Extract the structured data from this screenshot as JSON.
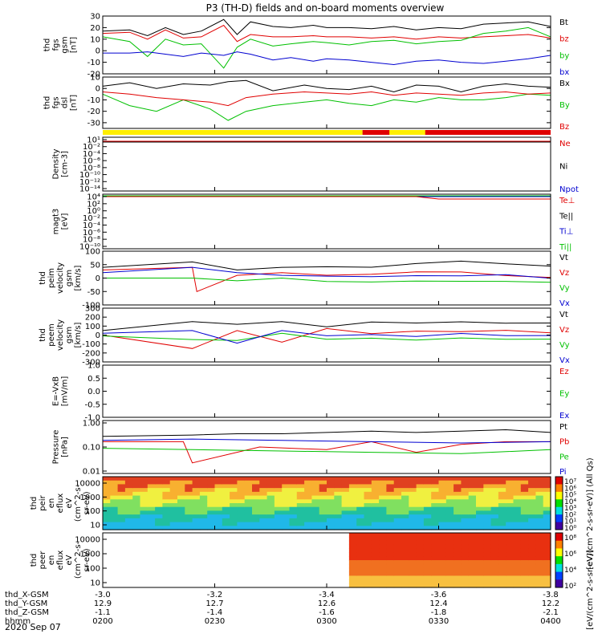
{
  "title": "P3 (TH-D) fields and on-board moments overview",
  "date_label": "2020 Sep 07",
  "colors": {
    "black": "#000000",
    "red": "#e00000",
    "green": "#00c000",
    "blue": "#0000d0",
    "yellow": "#ffee00"
  },
  "chart_data": [
    {
      "type": "line",
      "name": "fgs_gsm",
      "ylabel": [
        "thd",
        "fgs",
        "gsm",
        "[nT]"
      ],
      "ylim": [
        -20,
        30
      ],
      "yticks": [
        -20,
        -10,
        0,
        10,
        20,
        30
      ],
      "legend": [
        {
          "label": "Bt",
          "color": "black"
        },
        {
          "label": "bz",
          "color": "red"
        },
        {
          "label": "by",
          "color": "green"
        },
        {
          "label": "bx",
          "color": "blue"
        }
      ],
      "series": [
        {
          "name": "Bt",
          "color": "black",
          "x": [
            0,
            0.06,
            0.1,
            0.14,
            0.18,
            0.22,
            0.27,
            0.3,
            0.33,
            0.38,
            0.42,
            0.47,
            0.5,
            0.55,
            0.6,
            0.65,
            0.7,
            0.75,
            0.8,
            0.85,
            0.9,
            0.95,
            1
          ],
          "y": [
            17,
            18,
            13,
            20,
            14,
            17,
            27,
            14,
            25,
            21,
            20,
            22,
            20,
            20,
            19,
            21,
            18,
            20,
            19,
            23,
            24,
            25,
            21
          ]
        },
        {
          "name": "bz",
          "color": "red",
          "x": [
            0,
            0.06,
            0.1,
            0.14,
            0.18,
            0.22,
            0.27,
            0.3,
            0.33,
            0.38,
            0.42,
            0.47,
            0.5,
            0.55,
            0.6,
            0.65,
            0.7,
            0.75,
            0.8,
            0.85,
            0.9,
            0.95,
            1
          ],
          "y": [
            15,
            16,
            10,
            18,
            11,
            12,
            22,
            8,
            14,
            12,
            12,
            13,
            12,
            12,
            11,
            12,
            10,
            12,
            11,
            12,
            13,
            14,
            11
          ]
        },
        {
          "name": "by",
          "color": "green",
          "x": [
            0,
            0.06,
            0.1,
            0.14,
            0.18,
            0.22,
            0.27,
            0.3,
            0.33,
            0.38,
            0.42,
            0.47,
            0.5,
            0.55,
            0.6,
            0.65,
            0.7,
            0.75,
            0.8,
            0.85,
            0.9,
            0.95,
            1
          ],
          "y": [
            12,
            8,
            -5,
            10,
            5,
            6,
            -15,
            3,
            10,
            4,
            6,
            8,
            7,
            5,
            8,
            9,
            6,
            8,
            9,
            15,
            17,
            20,
            12
          ]
        },
        {
          "name": "bx",
          "color": "blue",
          "x": [
            0,
            0.06,
            0.1,
            0.14,
            0.18,
            0.22,
            0.27,
            0.3,
            0.33,
            0.38,
            0.42,
            0.47,
            0.5,
            0.55,
            0.6,
            0.65,
            0.7,
            0.75,
            0.8,
            0.85,
            0.9,
            0.95,
            1
          ],
          "y": [
            -2,
            -2,
            -1,
            -3,
            -5,
            -2,
            -4,
            -1,
            -3,
            -8,
            -6,
            -9,
            -7,
            -8,
            -10,
            -12,
            -9,
            -8,
            -10,
            -11,
            -9,
            -7,
            -4
          ]
        }
      ]
    },
    {
      "type": "line",
      "name": "fgs_dsl",
      "ylabel": [
        "thd",
        "fgs",
        "dsl",
        "[nT]"
      ],
      "ylim": [
        -35,
        10
      ],
      "yticks": [
        -30,
        -20,
        -10,
        0,
        10
      ],
      "legend": [
        {
          "label": "Bx",
          "color": "black"
        },
        {
          "label": "By",
          "color": "green"
        },
        {
          "label": "Bz",
          "color": "red"
        }
      ],
      "series": [
        {
          "name": "Bx",
          "color": "black",
          "x": [
            0,
            0.06,
            0.12,
            0.18,
            0.24,
            0.28,
            0.32,
            0.38,
            0.45,
            0.5,
            0.55,
            0.6,
            0.65,
            0.7,
            0.75,
            0.8,
            0.85,
            0.9,
            0.95,
            1
          ],
          "y": [
            2,
            5,
            0,
            4,
            3,
            6,
            7,
            -2,
            3,
            0,
            -1,
            2,
            -3,
            3,
            2,
            -3,
            2,
            4,
            2,
            1
          ]
        },
        {
          "name": "By",
          "color": "green",
          "x": [
            0,
            0.06,
            0.12,
            0.18,
            0.24,
            0.28,
            0.32,
            0.38,
            0.45,
            0.5,
            0.55,
            0.6,
            0.65,
            0.7,
            0.75,
            0.8,
            0.85,
            0.9,
            0.95,
            1
          ],
          "y": [
            -5,
            -15,
            -20,
            -10,
            -18,
            -28,
            -20,
            -15,
            -12,
            -10,
            -13,
            -15,
            -10,
            -12,
            -8,
            -10,
            -10,
            -8,
            -5,
            -6
          ]
        },
        {
          "name": "Bz",
          "color": "red",
          "x": [
            0,
            0.06,
            0.12,
            0.18,
            0.24,
            0.28,
            0.32,
            0.38,
            0.45,
            0.5,
            0.55,
            0.6,
            0.65,
            0.7,
            0.75,
            0.8,
            0.85,
            0.9,
            0.95,
            1
          ],
          "y": [
            -3,
            -5,
            -8,
            -10,
            -12,
            -15,
            -8,
            -5,
            -3,
            -4,
            -5,
            -3,
            -6,
            -4,
            -5,
            -6,
            -4,
            -3,
            -5,
            -4
          ]
        }
      ]
    },
    {
      "type": "line",
      "name": "density",
      "ylabel": [
        "Density",
        "[cm-3]"
      ],
      "ylog": true,
      "ylim": [
        -14,
        2
      ],
      "ytick_labels": [
        "10¹",
        "10⁻²",
        "10⁻⁴",
        "10⁻⁶",
        "10⁻⁸",
        "10⁻¹⁰",
        "10⁻¹²",
        "10⁻¹⁴"
      ],
      "legend": [
        {
          "label": "Ne",
          "color": "red"
        },
        {
          "label": "Ni",
          "color": "black"
        },
        {
          "label": "Npot",
          "color": "blue"
        }
      ],
      "series": [
        {
          "name": "Ne",
          "color": "red",
          "x": [
            0,
            1
          ],
          "y": [
            0.7,
            0.7
          ]
        },
        {
          "name": "Ni",
          "color": "black",
          "x": [
            0,
            1
          ],
          "y": [
            0.6,
            0.6
          ]
        }
      ]
    },
    {
      "type": "line",
      "name": "temperature",
      "ylabel": [
        "magt3",
        "[eV]"
      ],
      "ylog": true,
      "ylim": [
        -10,
        4
      ],
      "ytick_labels": [
        "10⁴",
        "10²",
        "10⁰",
        "10⁻²",
        "10⁻⁴",
        "10⁻⁶",
        "10⁻⁸",
        "10⁻¹⁰"
      ],
      "legend": [
        {
          "label": "Te⊥",
          "color": "red"
        },
        {
          "label": "Te||",
          "color": "black"
        },
        {
          "label": "Ti⊥",
          "color": "blue"
        },
        {
          "label": "Ti||",
          "color": "green"
        }
      ],
      "series": [
        {
          "name": "Te",
          "color": "red",
          "x": [
            0,
            0.7,
            0.75,
            1
          ],
          "y": [
            3.2,
            3.2,
            2.8,
            2.8
          ]
        },
        {
          "name": "Ti",
          "color": "green",
          "x": [
            0,
            1
          ],
          "y": [
            3.4,
            3.4
          ]
        }
      ]
    },
    {
      "type": "line",
      "name": "peim_velocity",
      "ylabel": [
        "thd",
        "peim",
        "velocity",
        "gsm",
        "[km/s]"
      ],
      "ylim": [
        -100,
        100
      ],
      "yticks": [
        -100,
        -50,
        0,
        50,
        100
      ],
      "legend": [
        {
          "label": "Vt",
          "color": "black"
        },
        {
          "label": "Vz",
          "color": "red"
        },
        {
          "label": "Vy",
          "color": "green"
        },
        {
          "label": "Vx",
          "color": "blue"
        }
      ],
      "series": [
        {
          "name": "Vt",
          "color": "black",
          "x": [
            0,
            0.2,
            0.3,
            0.4,
            0.5,
            0.6,
            0.7,
            0.8,
            0.9,
            1
          ],
          "y": [
            40,
            60,
            30,
            40,
            50,
            45,
            50,
            55,
            50,
            50
          ]
        },
        {
          "name": "Vz",
          "color": "red",
          "x": [
            0,
            0.2,
            0.21,
            0.3,
            0.4,
            0.5,
            0.6,
            0.7,
            0.8,
            0.9,
            1
          ],
          "y": [
            30,
            40,
            -50,
            10,
            20,
            15,
            10,
            15,
            20,
            15,
            10
          ]
        },
        {
          "name": "Vy",
          "color": "green",
          "x": [
            0,
            0.2,
            0.3,
            0.4,
            0.5,
            0.6,
            0.7,
            0.8,
            0.9,
            1
          ],
          "y": [
            0,
            0,
            -10,
            0,
            -5,
            -10,
            -15,
            -20,
            -15,
            -10
          ]
        },
        {
          "name": "Vx",
          "color": "blue",
          "x": [
            0,
            0.2,
            0.3,
            0.4,
            0.5,
            0.6,
            0.7,
            0.8,
            0.9,
            1
          ],
          "y": [
            20,
            40,
            20,
            10,
            15,
            10,
            5,
            0,
            10,
            5
          ]
        }
      ]
    },
    {
      "type": "line",
      "name": "peem_velocity",
      "ylabel": [
        "thd",
        "peem",
        "velocity",
        "gsm",
        "[km/s]"
      ],
      "ylim": [
        -300,
        300
      ],
      "yticks": [
        -300,
        -200,
        -100,
        0,
        100,
        200,
        300
      ],
      "legend": [
        {
          "label": "Vt",
          "color": "black"
        },
        {
          "label": "Vz",
          "color": "red"
        },
        {
          "label": "Vy",
          "color": "green"
        },
        {
          "label": "Vx",
          "color": "blue"
        }
      ],
      "series": [
        {
          "name": "Vt",
          "color": "black",
          "x": [
            0,
            0.2,
            0.3,
            0.4,
            0.5,
            0.6,
            0.7,
            0.8,
            0.9,
            1
          ],
          "y": [
            50,
            150,
            120,
            150,
            100,
            150,
            130,
            140,
            130,
            140
          ]
        },
        {
          "name": "Vz",
          "color": "red",
          "x": [
            0,
            0.2,
            0.3,
            0.4,
            0.5,
            0.6,
            0.7,
            0.8,
            0.9,
            1
          ],
          "y": [
            0,
            -150,
            50,
            -80,
            80,
            20,
            40,
            30,
            50,
            30
          ]
        },
        {
          "name": "Vy",
          "color": "green",
          "x": [
            0,
            0.2,
            0.3,
            0.4,
            0.5,
            0.6,
            0.7,
            0.8,
            0.9,
            1
          ],
          "y": [
            -10,
            -50,
            -60,
            20,
            -40,
            -30,
            -60,
            -40,
            -50,
            -40
          ]
        },
        {
          "name": "Vx",
          "color": "blue",
          "x": [
            0,
            0.2,
            0.3,
            0.4,
            0.5,
            0.6,
            0.7,
            0.8,
            0.9,
            1
          ],
          "y": [
            20,
            50,
            -90,
            50,
            0,
            10,
            -20,
            10,
            -10,
            0
          ]
        }
      ]
    },
    {
      "type": "line",
      "name": "efield",
      "ylabel": [
        "E=-VxB",
        "[mV/m]"
      ],
      "ylim": [
        -1,
        1
      ],
      "yticks": [
        -1,
        -0.5,
        0,
        0.5,
        1
      ],
      "ytick_labels": [
        "-1.0",
        "-0.5",
        "0.0",
        "0.5",
        "1.0"
      ],
      "legend": [
        {
          "label": "Ez",
          "color": "red"
        },
        {
          "label": "Ey",
          "color": "green"
        },
        {
          "label": "Ex",
          "color": "blue"
        }
      ],
      "series": []
    },
    {
      "type": "line",
      "name": "pressure",
      "ylabel": [
        "Pressure",
        "[nPa]"
      ],
      "ylog": true,
      "ylim": [
        -2,
        0
      ],
      "ytick_labels": [
        "1.00",
        "0.10",
        "0.01"
      ],
      "legend": [
        {
          "label": "Pt",
          "color": "black"
        },
        {
          "label": "Pb",
          "color": "red"
        },
        {
          "label": "Pe",
          "color": "green"
        },
        {
          "label": "Pi",
          "color": "blue"
        }
      ],
      "series": [
        {
          "name": "Pt",
          "color": "black",
          "x": [
            0,
            0.2,
            0.3,
            0.4,
            0.5,
            0.6,
            0.7,
            0.8,
            0.9,
            1
          ],
          "y": [
            -0.6,
            -0.55,
            -0.5,
            -0.5,
            -0.45,
            -0.4,
            -0.45,
            -0.4,
            -0.35,
            -0.45
          ]
        },
        {
          "name": "Pb",
          "color": "red",
          "x": [
            0,
            0.18,
            0.2,
            0.35,
            0.5,
            0.6,
            0.7,
            0.8,
            0.9,
            1
          ],
          "y": [
            -0.8,
            -0.8,
            -1.6,
            -1.0,
            -1.1,
            -0.8,
            -1.2,
            -0.9,
            -0.8,
            -0.8
          ]
        },
        {
          "name": "Pe",
          "color": "green",
          "x": [
            0,
            0.2,
            0.4,
            0.6,
            0.8,
            1
          ],
          "y": [
            -1.05,
            -1.1,
            -1.15,
            -1.2,
            -1.25,
            -1.1
          ]
        },
        {
          "name": "Pi",
          "color": "blue",
          "x": [
            0,
            0.2,
            0.4,
            0.6,
            0.8,
            1
          ],
          "y": [
            -0.75,
            -0.7,
            -0.75,
            -0.8,
            -0.85,
            -0.8
          ]
        }
      ]
    },
    {
      "type": "heatmap",
      "name": "peir_en_eflux",
      "ylabel": [
        "thd",
        "peir",
        "en",
        "eflux",
        "eV",
        "(cm^2-s-",
        "sr-eV)"
      ],
      "ylog": true,
      "yticks": [
        10,
        100,
        1000,
        10000
      ],
      "ytick_labels": [
        "10",
        "100",
        "1000",
        "10000"
      ],
      "colorbar_ticks": [
        "10⁷",
        "10⁶",
        "10⁵",
        "10⁴",
        "10³",
        "10²",
        "10¹",
        "10⁰"
      ],
      "colorbar_label": "[eV/(cm^2-s-sr-eV)] (All Qs)"
    },
    {
      "type": "heatmap",
      "name": "peer_en_eflux",
      "ylabel": [
        "thd",
        "peer",
        "en",
        "eflux",
        "eV",
        "(cm^2-s-",
        "sr-eV)"
      ],
      "ylog": true,
      "yticks": [
        10,
        100,
        1000,
        10000
      ],
      "ytick_labels": [
        "10",
        "100",
        "1000",
        "10000"
      ],
      "colorbar_ticks": [
        "10⁸",
        "10⁶",
        "10⁴",
        "10²"
      ],
      "colorbar_label": "[eV/(cm^2-s-sr-eV)]",
      "data_start": 0.55
    }
  ],
  "footer": {
    "row_labels": [
      "thd_X-GSM",
      "thd_Y-GSM",
      "thd_Z-GSM",
      "hhmm"
    ],
    "columns": [
      {
        "x": "-3.0",
        "y": "12.9",
        "z": "-1.1",
        "t": "0200"
      },
      {
        "x": "-3.2",
        "y": "12.7",
        "z": "-1.4",
        "t": "0230"
      },
      {
        "x": "-3.4",
        "y": "12.6",
        "z": "-1.6",
        "t": "0300"
      },
      {
        "x": "-3.6",
        "y": "12.4",
        "z": "-1.8",
        "t": "0330"
      },
      {
        "x": "-3.8",
        "y": "12.2",
        "z": "-2.1",
        "t": "0400"
      }
    ]
  }
}
